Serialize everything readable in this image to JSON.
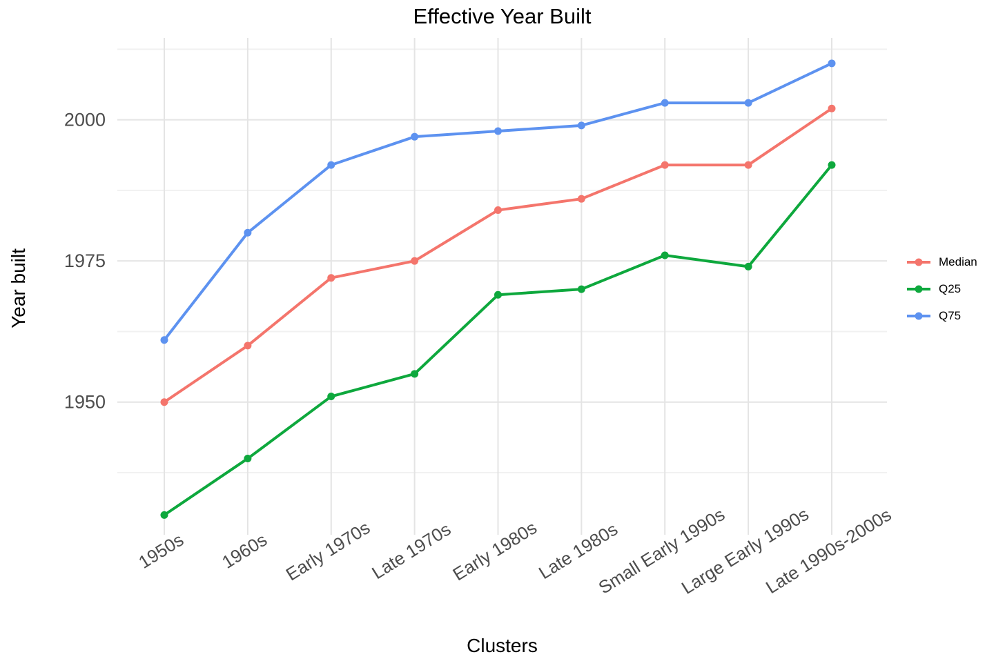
{
  "chart_data": {
    "type": "line",
    "title": "Effective Year Built",
    "xlabel": "Clusters",
    "ylabel": "Year built",
    "categories": [
      "1950s",
      "1960s",
      "Early 1970s",
      "Late 1970s",
      "Early 1980s",
      "Late 1980s",
      "Small Early 1990s",
      "Large Early 1990s",
      "Late 1990s-2000s"
    ],
    "series": [
      {
        "name": "Median",
        "color": "#F4756C",
        "values": [
          1950,
          1960,
          1972,
          1975,
          1984,
          1986,
          1992,
          1992,
          2002
        ]
      },
      {
        "name": "Q25",
        "color": "#0EA83D",
        "values": [
          1930,
          1940,
          1951,
          1955,
          1969,
          1970,
          1976,
          1974,
          1992
        ]
      },
      {
        "name": "Q75",
        "color": "#5D92F0",
        "values": [
          1961,
          1980,
          1992,
          1997,
          1998,
          1999,
          2003,
          2003,
          2010
        ]
      }
    ],
    "y_axis": {
      "tick_labels": [
        "1950",
        "1975",
        "2000"
      ],
      "ticks": [
        1950,
        1975,
        2000
      ],
      "minor_ticks": [
        1937.5,
        1962.5,
        1987.5,
        2012.5
      ],
      "range": [
        1926.5,
        2014.5
      ]
    },
    "legend_position": "right",
    "grid": "on"
  },
  "colors": {
    "background": "#FFFFFF",
    "grid_major": "#E4E4E4",
    "grid_minor": "#F1F1F1",
    "tick_label": "#4D4D4D"
  }
}
